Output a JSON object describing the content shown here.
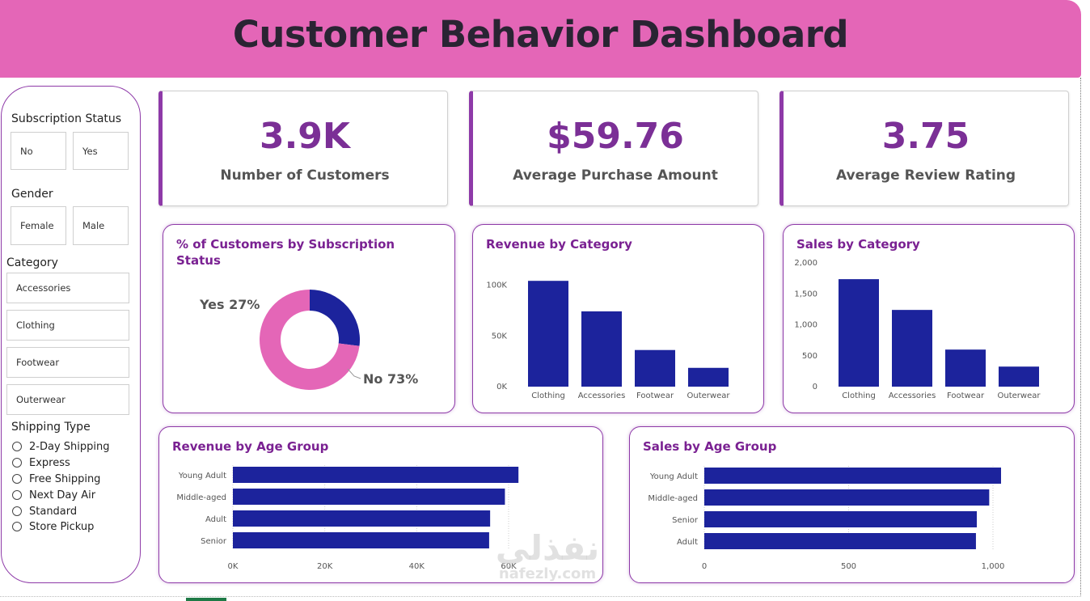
{
  "header": {
    "title": "Customer Behavior Dashboard"
  },
  "colors": {
    "header_bg": "#e466b7",
    "accent": "#8e3aa8",
    "bar": "#1c239c",
    "donut_no": "#e466b7",
    "donut_yes": "#1c239c",
    "kpi_value": "#7b2f96"
  },
  "sidebar": {
    "subscription": {
      "title": "Subscription Status",
      "options": [
        "No",
        "Yes"
      ]
    },
    "gender": {
      "title": "Gender",
      "options": [
        "Female",
        "Male"
      ]
    },
    "category": {
      "title": "Category",
      "options": [
        "Accessories",
        "Clothing",
        "Footwear",
        "Outerwear"
      ]
    },
    "shipping": {
      "title": "Shipping Type",
      "options": [
        "2-Day Shipping",
        "Express",
        "Free Shipping",
        "Next Day Air",
        "Standard",
        "Store Pickup"
      ]
    }
  },
  "kpis": [
    {
      "value": "3.9K",
      "label": "Number of Customers"
    },
    {
      "value": "$59.76",
      "label": "Average Purchase Amount"
    },
    {
      "value": "3.75",
      "label": "Average Review Rating"
    }
  ],
  "chart_data": [
    {
      "type": "pie",
      "title": "% of Customers by Subscription Status",
      "categories": [
        "Yes",
        "No"
      ],
      "values": [
        27,
        73
      ],
      "data_labels": [
        "Yes 27%",
        "No 73%"
      ]
    },
    {
      "type": "bar",
      "title": "Revenue by Category",
      "categories": [
        "Clothing",
        "Accessories",
        "Footwear",
        "Outerwear"
      ],
      "values": [
        104264,
        74200,
        36093,
        18524
      ],
      "y_ticks": [
        "0K",
        "50K",
        "100K"
      ],
      "ylim": [
        0,
        110000
      ]
    },
    {
      "type": "bar",
      "title": "Sales by Category",
      "categories": [
        "Clothing",
        "Accessories",
        "Footwear",
        "Outerwear"
      ],
      "values": [
        1737,
        1240,
        599,
        324
      ],
      "y_ticks": [
        "0",
        "500",
        "1,000",
        "1,500",
        "2,000"
      ],
      "ylim": [
        0,
        2000
      ]
    },
    {
      "type": "bar",
      "orientation": "horizontal",
      "title": "Revenue by Age Group",
      "categories": [
        "Young Adult",
        "Middle-aged",
        "Adult",
        "Senior"
      ],
      "values": [
        62143,
        59197,
        55978,
        55763
      ],
      "x_ticks": [
        "0K",
        "20K",
        "40K",
        "60K"
      ],
      "xlim": [
        0,
        60000
      ]
    },
    {
      "type": "bar",
      "orientation": "horizontal",
      "title": "Sales by Age Group",
      "categories": [
        "Young Adult",
        "Middle-aged",
        "Senior",
        "Adult"
      ],
      "values": [
        1028,
        987,
        944,
        941
      ],
      "x_ticks": [
        "0",
        "500",
        "1,000"
      ],
      "xlim": [
        0,
        1000
      ]
    }
  ],
  "watermark": {
    "main": "نفذلي",
    "sub": "nafezly.com"
  }
}
